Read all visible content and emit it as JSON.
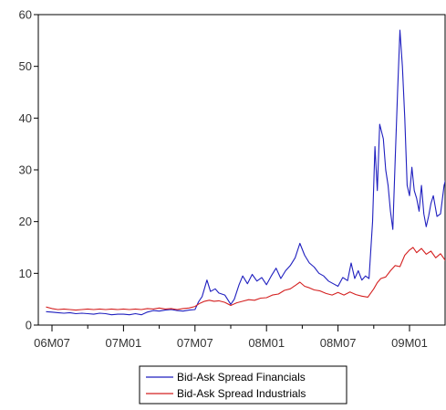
{
  "chart_data": {
    "type": "line",
    "title": "",
    "xlabel": "",
    "ylabel": "",
    "ylim": [
      0,
      60
    ],
    "yticks": [
      0,
      10,
      20,
      30,
      40,
      50,
      60
    ],
    "xlim": [
      0,
      33.6
    ],
    "xtick_labels": [
      "06M07",
      "07M01",
      "07M07",
      "08M01",
      "08M07",
      "09M01"
    ],
    "xtick_positions": [
      0,
      6,
      12,
      18,
      24,
      30
    ],
    "grid": false,
    "legend_position": "bottom-center",
    "series": [
      {
        "name": "Bid-Ask Spread Financials",
        "color": "#1f1fbf",
        "points": [
          [
            -0.5,
            2.6
          ],
          [
            0.0,
            2.5
          ],
          [
            0.5,
            2.4
          ],
          [
            1.0,
            2.3
          ],
          [
            1.5,
            2.4
          ],
          [
            2.0,
            2.2
          ],
          [
            2.5,
            2.3
          ],
          [
            3.0,
            2.2
          ],
          [
            3.5,
            2.1
          ],
          [
            4.0,
            2.3
          ],
          [
            4.5,
            2.2
          ],
          [
            5.0,
            2.0
          ],
          [
            5.5,
            2.1
          ],
          [
            6.0,
            2.1
          ],
          [
            6.5,
            2.0
          ],
          [
            7.0,
            2.2
          ],
          [
            7.5,
            2.0
          ],
          [
            8.0,
            2.5
          ],
          [
            8.5,
            2.8
          ],
          [
            9.0,
            2.7
          ],
          [
            9.5,
            2.9
          ],
          [
            10.0,
            3.0
          ],
          [
            10.5,
            2.8
          ],
          [
            11.0,
            2.7
          ],
          [
            11.5,
            2.9
          ],
          [
            12.0,
            3.0
          ],
          [
            12.3,
            4.5
          ],
          [
            12.6,
            5.5
          ],
          [
            13.0,
            8.7
          ],
          [
            13.3,
            6.5
          ],
          [
            13.7,
            7.0
          ],
          [
            14.0,
            6.2
          ],
          [
            14.5,
            5.8
          ],
          [
            15.0,
            4.0
          ],
          [
            15.3,
            5.0
          ],
          [
            15.7,
            7.8
          ],
          [
            16.0,
            9.5
          ],
          [
            16.4,
            8.0
          ],
          [
            16.8,
            9.8
          ],
          [
            17.2,
            8.5
          ],
          [
            17.6,
            9.2
          ],
          [
            18.0,
            7.8
          ],
          [
            18.4,
            9.5
          ],
          [
            18.8,
            11.0
          ],
          [
            19.2,
            9.0
          ],
          [
            19.6,
            10.5
          ],
          [
            20.0,
            11.5
          ],
          [
            20.4,
            13.0
          ],
          [
            20.8,
            15.8
          ],
          [
            21.2,
            13.5
          ],
          [
            21.6,
            12.0
          ],
          [
            22.0,
            11.2
          ],
          [
            22.4,
            10.0
          ],
          [
            22.8,
            9.5
          ],
          [
            23.2,
            8.5
          ],
          [
            23.6,
            8.0
          ],
          [
            24.0,
            7.5
          ],
          [
            24.4,
            9.2
          ],
          [
            24.8,
            8.6
          ],
          [
            25.1,
            12.0
          ],
          [
            25.4,
            9.0
          ],
          [
            25.7,
            10.5
          ],
          [
            26.0,
            8.7
          ],
          [
            26.3,
            9.5
          ],
          [
            26.6,
            9.0
          ],
          [
            26.9,
            20.0
          ],
          [
            27.1,
            34.5
          ],
          [
            27.3,
            26.0
          ],
          [
            27.5,
            38.8
          ],
          [
            27.8,
            36.0
          ],
          [
            28.0,
            30.0
          ],
          [
            28.2,
            27.0
          ],
          [
            28.4,
            22.0
          ],
          [
            28.6,
            18.5
          ],
          [
            28.8,
            32.0
          ],
          [
            29.0,
            45.0
          ],
          [
            29.2,
            57.0
          ],
          [
            29.4,
            50.0
          ],
          [
            29.6,
            40.0
          ],
          [
            29.8,
            27.0
          ],
          [
            30.0,
            25.0
          ],
          [
            30.2,
            30.5
          ],
          [
            30.4,
            26.0
          ],
          [
            30.6,
            24.5
          ],
          [
            30.8,
            22.0
          ],
          [
            31.0,
            27.0
          ],
          [
            31.2,
            21.5
          ],
          [
            31.4,
            19.0
          ],
          [
            31.6,
            21.0
          ],
          [
            31.8,
            23.5
          ],
          [
            32.0,
            25.0
          ],
          [
            32.3,
            21.0
          ],
          [
            32.6,
            21.5
          ],
          [
            32.9,
            27.0
          ],
          [
            33.2,
            29.5
          ],
          [
            33.5,
            32.5
          ]
        ]
      },
      {
        "name": "Bid-Ask Spread Industrials",
        "color": "#d42020",
        "points": [
          [
            -0.5,
            3.5
          ],
          [
            0.0,
            3.2
          ],
          [
            0.5,
            3.0
          ],
          [
            1.0,
            3.1
          ],
          [
            1.5,
            3.0
          ],
          [
            2.0,
            2.9
          ],
          [
            2.5,
            3.0
          ],
          [
            3.0,
            3.1
          ],
          [
            3.5,
            3.0
          ],
          [
            4.0,
            3.1
          ],
          [
            4.5,
            3.0
          ],
          [
            5.0,
            3.1
          ],
          [
            5.5,
            3.0
          ],
          [
            6.0,
            3.1
          ],
          [
            6.5,
            3.0
          ],
          [
            7.0,
            3.1
          ],
          [
            7.5,
            3.0
          ],
          [
            8.0,
            3.2
          ],
          [
            8.5,
            3.1
          ],
          [
            9.0,
            3.3
          ],
          [
            9.5,
            3.1
          ],
          [
            10.0,
            3.2
          ],
          [
            10.5,
            3.0
          ],
          [
            11.0,
            3.2
          ],
          [
            11.5,
            3.3
          ],
          [
            12.0,
            3.6
          ],
          [
            12.4,
            4.2
          ],
          [
            12.8,
            4.6
          ],
          [
            13.2,
            4.8
          ],
          [
            13.6,
            4.6
          ],
          [
            14.0,
            4.7
          ],
          [
            14.5,
            4.4
          ],
          [
            15.0,
            3.8
          ],
          [
            15.5,
            4.3
          ],
          [
            16.0,
            4.6
          ],
          [
            16.5,
            4.9
          ],
          [
            17.0,
            4.8
          ],
          [
            17.5,
            5.2
          ],
          [
            18.0,
            5.3
          ],
          [
            18.5,
            5.8
          ],
          [
            19.0,
            6.0
          ],
          [
            19.5,
            6.7
          ],
          [
            20.0,
            7.0
          ],
          [
            20.5,
            7.8
          ],
          [
            20.8,
            8.3
          ],
          [
            21.2,
            7.5
          ],
          [
            21.6,
            7.2
          ],
          [
            22.0,
            6.8
          ],
          [
            22.5,
            6.6
          ],
          [
            23.0,
            6.1
          ],
          [
            23.5,
            5.8
          ],
          [
            24.0,
            6.3
          ],
          [
            24.5,
            5.8
          ],
          [
            25.0,
            6.4
          ],
          [
            25.5,
            5.9
          ],
          [
            26.0,
            5.6
          ],
          [
            26.5,
            5.4
          ],
          [
            27.0,
            7.0
          ],
          [
            27.3,
            8.2
          ],
          [
            27.6,
            9.0
          ],
          [
            28.0,
            9.3
          ],
          [
            28.4,
            10.5
          ],
          [
            28.8,
            11.5
          ],
          [
            29.2,
            11.3
          ],
          [
            29.6,
            13.5
          ],
          [
            30.0,
            14.5
          ],
          [
            30.3,
            15.0
          ],
          [
            30.6,
            14.0
          ],
          [
            31.0,
            14.8
          ],
          [
            31.4,
            13.7
          ],
          [
            31.8,
            14.3
          ],
          [
            32.2,
            13.0
          ],
          [
            32.6,
            13.8
          ],
          [
            33.0,
            12.5
          ],
          [
            33.3,
            12.8
          ],
          [
            33.6,
            12.6
          ]
        ]
      }
    ]
  }
}
